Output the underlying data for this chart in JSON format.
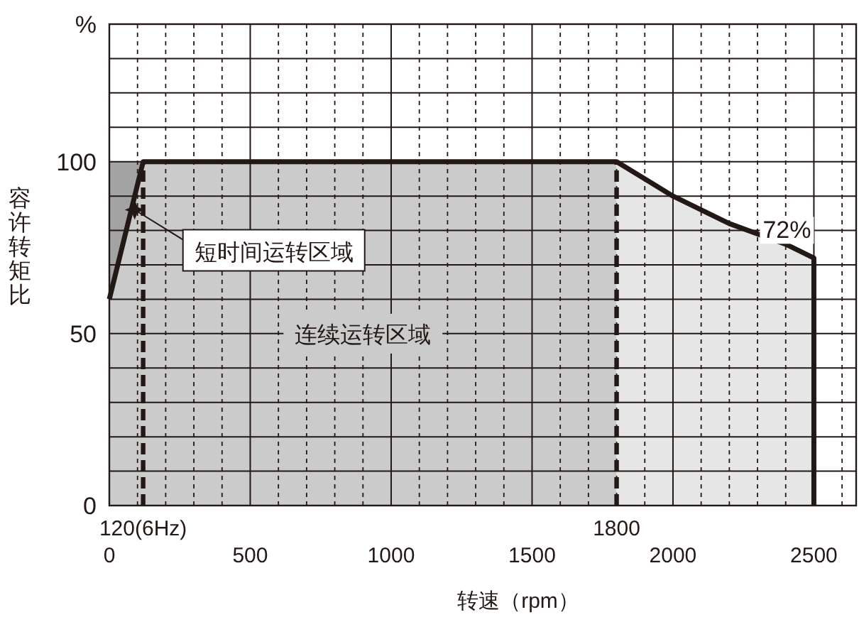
{
  "chart_data": {
    "type": "area",
    "xlabel": "转速（rpm）",
    "ylabel": "容许转矩比",
    "xlim": [
      0,
      2650
    ],
    "ylim": [
      0,
      140
    ],
    "xticks": [
      0,
      {
        "value": 100,
        "label": null
      },
      {
        "value": 200,
        "label": null
      },
      {
        "value": 300,
        "label": null
      },
      {
        "value": 400,
        "label": null
      },
      500,
      {
        "value": 600,
        "label": null
      },
      {
        "value": 700,
        "label": null
      },
      {
        "value": 800,
        "label": null
      },
      {
        "value": 900,
        "label": null
      },
      1000,
      {
        "value": 1100,
        "label": null
      },
      {
        "value": 1200,
        "label": null
      },
      {
        "value": 1300,
        "label": null
      },
      {
        "value": 1400,
        "label": null
      },
      1500,
      {
        "value": 1600,
        "label": null
      },
      {
        "value": 1700,
        "label": null
      },
      {
        "value": 1800,
        "label": null
      },
      {
        "value": 1900,
        "label": null
      },
      2000,
      {
        "value": 2100,
        "label": null
      },
      {
        "value": 2200,
        "label": null
      },
      {
        "value": 2300,
        "label": null
      },
      {
        "value": 2400,
        "label": null
      },
      2500,
      {
        "value": 2600,
        "label": null
      }
    ],
    "yticks": [
      0,
      {
        "value": 10,
        "label": null
      },
      {
        "value": 20,
        "label": null
      },
      {
        "value": 30,
        "label": null
      },
      {
        "value": 40,
        "label": null
      },
      50,
      {
        "value": 60,
        "label": null
      },
      {
        "value": 70,
        "label": null
      },
      {
        "value": 80,
        "label": null
      },
      {
        "value": 90,
        "label": null
      },
      100,
      {
        "value": 110,
        "label": null
      },
      {
        "value": 120,
        "label": null
      },
      {
        "value": 130,
        "label": null
      },
      {
        "value": 140,
        "label": "%"
      }
    ],
    "grid": true,
    "series": [
      {
        "color": "#a3a3a3",
        "x": [
          0,
          120
        ],
        "values": [
          100,
          100
        ]
      },
      {
        "color": "#cbcbcb",
        "x": [
          0,
          120,
          1800
        ],
        "values": [
          60,
          100,
          100
        ]
      },
      {
        "color": "#e6e6e6",
        "x": [
          1800,
          2000,
          2200,
          2400,
          2500
        ],
        "values": [
          100,
          90,
          82,
          76,
          72
        ]
      },
      {
        "type": "line",
        "color": "#231815",
        "x": [
          0,
          120,
          1800,
          2000,
          2200,
          2400,
          2500,
          2500
        ],
        "values": [
          60,
          100,
          100,
          90,
          82,
          76,
          72,
          0
        ]
      }
    ],
    "ref_lines": [
      {
        "axis": "x",
        "value": 120,
        "label": "120(6Hz)",
        "color": "#231815",
        "line_style": "dashed"
      },
      {
        "axis": "x",
        "value": 1800,
        "label": "1800",
        "color": "#231815",
        "line_style": "dashed"
      }
    ],
    "annotations": [
      {
        "text": "短时间运转区域",
        "x": 90,
        "y": 86
      },
      "连续运转区域",
      {
        "text": "72%",
        "x": 2500,
        "y": 72
      }
    ]
  }
}
